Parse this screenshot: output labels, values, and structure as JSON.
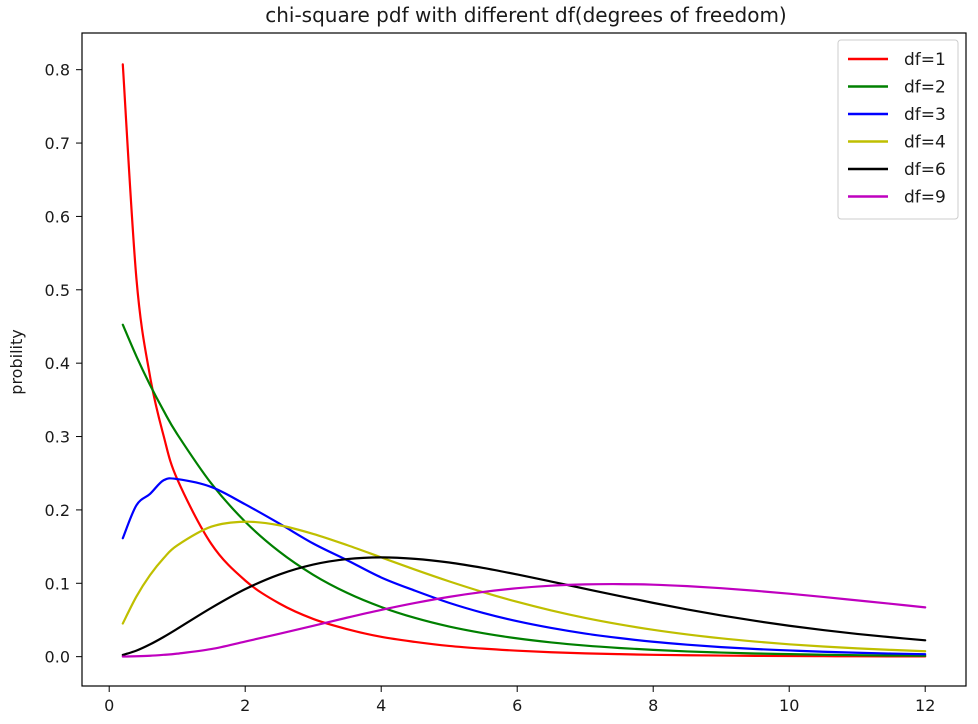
{
  "chart_data": {
    "type": "line",
    "title": "chi-square pdf with different df(degrees of freedom)",
    "xlabel": "",
    "ylabel": "probility",
    "xlim": [
      -0.4,
      12.6
    ],
    "ylim": [
      -0.04,
      0.85
    ],
    "x_ticks": [
      0,
      2,
      4,
      6,
      8,
      10,
      12
    ],
    "x_tick_labels": [
      "0",
      "2",
      "4",
      "6",
      "8",
      "10",
      "12"
    ],
    "y_ticks": [
      0.0,
      0.1,
      0.2,
      0.3,
      0.4,
      0.5,
      0.6,
      0.7,
      0.8
    ],
    "y_tick_labels": [
      "0.0",
      "0.1",
      "0.2",
      "0.3",
      "0.4",
      "0.5",
      "0.6",
      "0.7",
      "0.8"
    ],
    "grid": false,
    "legend_position": "top-right",
    "x": [
      0.2,
      0.4,
      0.6,
      0.8,
      1,
      1.5,
      2,
      2.5,
      3,
      3.5,
      4,
      4.5,
      5,
      5.5,
      6,
      6.5,
      7,
      7.5,
      8,
      8.5,
      9,
      9.5,
      10,
      10.5,
      11,
      11.5,
      12
    ],
    "series": [
      {
        "name": "df=1",
        "color": "#ff0000",
        "values": [
          0.8072,
          0.5156,
          0.3823,
          0.3011,
          0.242,
          0.1539,
          0.1038,
          0.0726,
          0.0514,
          0.0375,
          0.027,
          0.0201,
          0.0146,
          0.0109,
          0.0081,
          0.006,
          0.0045,
          0.0034,
          0.0025,
          0.0019,
          0.0015,
          0.0011,
          0.0008,
          0.0006,
          0.0005,
          0.0004,
          0.0003
        ]
      },
      {
        "name": "df=2",
        "color": "#008000",
        "values": [
          0.4524,
          0.4094,
          0.3704,
          0.3352,
          0.3033,
          0.2362,
          0.1839,
          0.1433,
          0.1116,
          0.0869,
          0.0677,
          0.0527,
          0.041,
          0.032,
          0.0249,
          0.0194,
          0.0151,
          0.0118,
          0.0092,
          0.0071,
          0.0056,
          0.0043,
          0.0034,
          0.0026,
          0.002,
          0.0016,
          0.0012
        ]
      },
      {
        "name": "df=3",
        "color": "#0000ff",
        "values": [
          0.1614,
          0.2063,
          0.2218,
          0.2404,
          0.242,
          0.2313,
          0.2076,
          0.1815,
          0.1542,
          0.1314,
          0.1079,
          0.0898,
          0.0733,
          0.0596,
          0.0483,
          0.0391,
          0.0315,
          0.0254,
          0.0203,
          0.0163,
          0.013,
          0.0104,
          0.0085,
          0.0067,
          0.0053,
          0.0042,
          0.0033
        ]
      },
      {
        "name": "df=4",
        "color": "#bfbf00",
        "values": [
          0.0452,
          0.0819,
          0.1111,
          0.1341,
          0.1516,
          0.1771,
          0.1839,
          0.1791,
          0.1673,
          0.152,
          0.1353,
          0.1185,
          0.1026,
          0.0879,
          0.0747,
          0.063,
          0.0528,
          0.0441,
          0.0366,
          0.0303,
          0.025,
          0.0206,
          0.0168,
          0.0138,
          0.0113,
          0.0092,
          0.0074
        ]
      },
      {
        "name": "df=6",
        "color": "#000000",
        "values": [
          0.0023,
          0.0082,
          0.0167,
          0.0268,
          0.0379,
          0.0664,
          0.092,
          0.1119,
          0.1255,
          0.133,
          0.1353,
          0.1333,
          0.1283,
          0.1209,
          0.112,
          0.1024,
          0.0925,
          0.0827,
          0.0733,
          0.0644,
          0.0562,
          0.0488,
          0.0421,
          0.0362,
          0.031,
          0.0264,
          0.0223
        ]
      },
      {
        "name": "df=9",
        "color": "#bf00bf",
        "values": [
          0.0001,
          0.0005,
          0.0012,
          0.0025,
          0.0041,
          0.0103,
          0.0206,
          0.0311,
          0.0421,
          0.0532,
          0.0637,
          0.0732,
          0.0815,
          0.0882,
          0.0933,
          0.0967,
          0.0985,
          0.0989,
          0.0981,
          0.0961,
          0.0933,
          0.0898,
          0.0858,
          0.0814,
          0.0767,
          0.072,
          0.0672
        ]
      }
    ]
  }
}
